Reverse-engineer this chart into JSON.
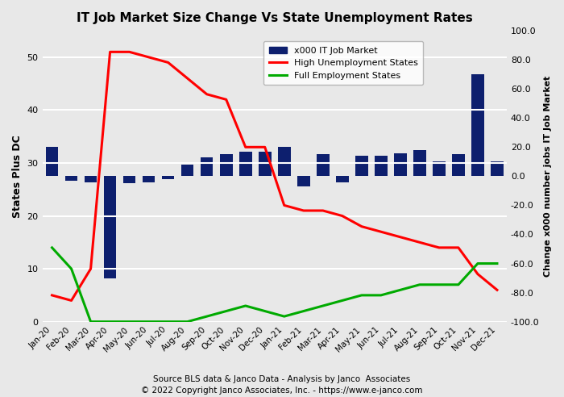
{
  "title": "IT Job Market Size Change Vs State Unemployment Rates",
  "xlabel_bottom": "Source BLS data & Janco Data - Analysis by Janco  Associates\n© 2022 Copyright Janco Associates, Inc. - https://www.e-janco.com",
  "ylabel_left": "States Plus DC",
  "ylabel_right": "Change x000 number jobs IT Job Market",
  "categories": [
    "Jan-20",
    "Feb-20",
    "Mar-20",
    "Apr-20",
    "May-20",
    "Jun-20",
    "Jul-20",
    "Aug-20",
    "Sep-20",
    "Oct-20",
    "Nov-20",
    "Dec-20",
    "Jan-21",
    "Feb-21",
    "Mar-21",
    "Apr-21",
    "May-21",
    "Jun-21",
    "Jul-21",
    "Aug-21",
    "Sep-21",
    "Oct-21",
    "Nov-21",
    "Dec-21"
  ],
  "bar_values": [
    20,
    -3,
    -4,
    -70,
    -5,
    -4,
    -2,
    8,
    13,
    15,
    17,
    17,
    20,
    -7,
    15,
    -4,
    14,
    14,
    16,
    18,
    10,
    15,
    70,
    10
  ],
  "bar_color": "#0d1f6e",
  "high_unemployment": [
    5,
    4,
    10,
    51,
    51,
    50,
    49,
    46,
    43,
    42,
    33,
    33,
    22,
    21,
    21,
    20,
    18,
    17,
    16,
    15,
    14,
    14,
    9,
    6
  ],
  "full_employment": [
    14,
    10,
    0,
    0,
    0,
    0,
    0,
    0,
    1,
    2,
    3,
    2,
    1,
    2,
    3,
    4,
    5,
    5,
    6,
    7,
    7,
    7,
    11,
    11
  ],
  "left_ylim": [
    0,
    55
  ],
  "left_yticks": [
    0,
    10,
    20,
    30,
    40,
    50
  ],
  "right_ylim": [
    -100,
    100
  ],
  "right_yticks": [
    -100.0,
    -80.0,
    -60.0,
    -40.0,
    -20.0,
    0.0,
    20.0,
    40.0,
    60.0,
    80.0,
    100.0
  ],
  "background_color": "#e8e8e8",
  "grid_color": "#ffffff",
  "red_line_color": "#ff0000",
  "green_line_color": "#00aa00",
  "legend_labels": [
    "x000 IT Job Market",
    "High Unemployment States",
    "Full Employment States"
  ],
  "figsize": [
    7.0,
    4.92
  ],
  "dpi": 100
}
